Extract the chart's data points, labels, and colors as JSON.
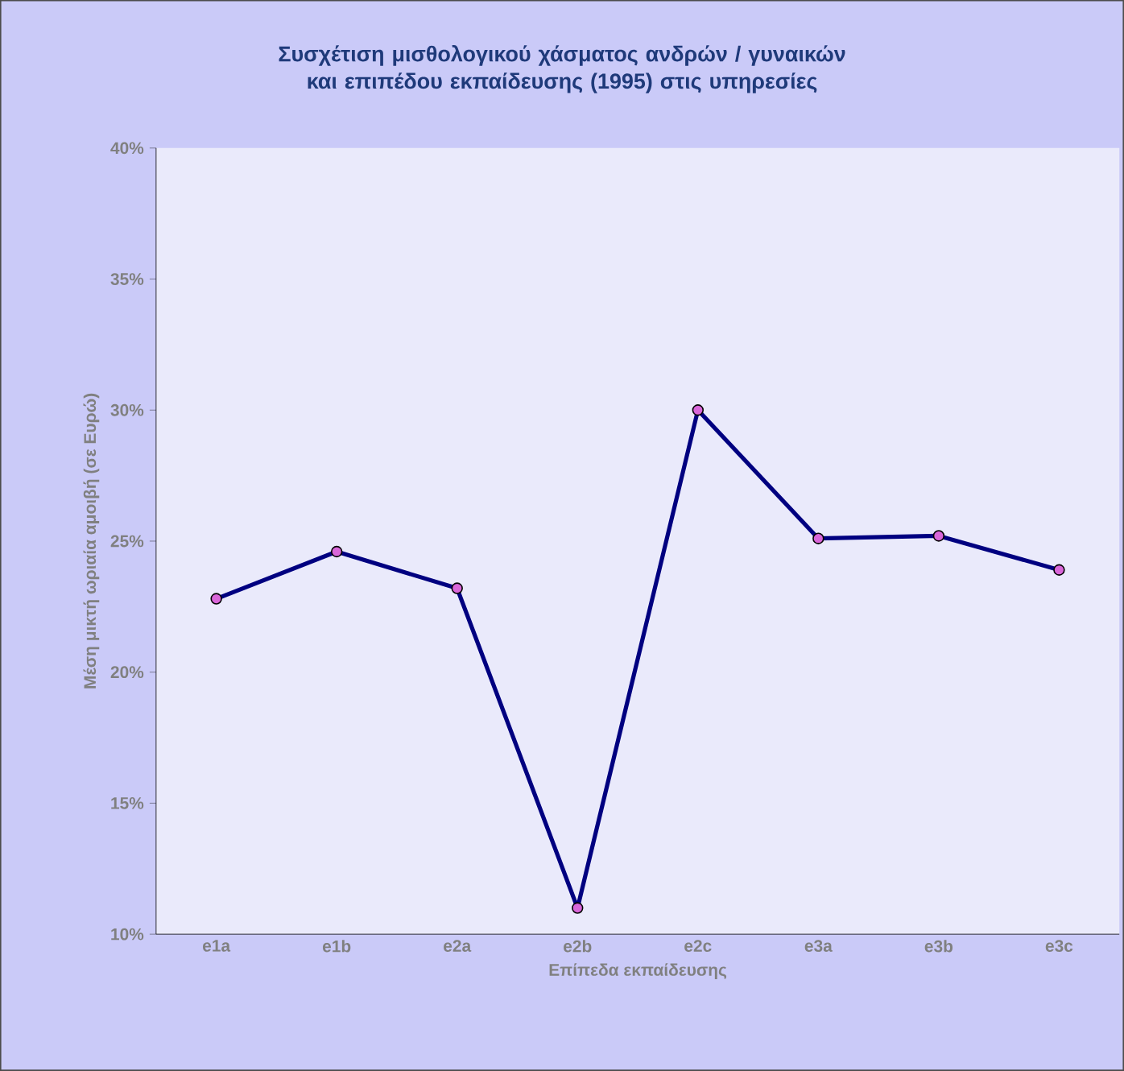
{
  "chart_data": {
    "type": "line",
    "title": "Συσχέτιση μισθολογικού χάσματος ανδρών / γυναικών και επιπέδου εκπαίδευσης (1995) στις υπηρεσίες",
    "xlabel": "Επίπεδα εκπαίδευσης",
    "ylabel": "Μέση μικτή ωριαία αμοιβή (σε Ευρώ)",
    "categories": [
      "e1a",
      "e1b",
      "e2a",
      "e2b",
      "e2c",
      "e3a",
      "e3b",
      "e3c"
    ],
    "series": [
      {
        "color": "#000080",
        "values": [
          22.8,
          24.6,
          23.2,
          11.0,
          30.0,
          25.1,
          25.2,
          23.9
        ]
      }
    ],
    "ylim": [
      10,
      40
    ],
    "yticks": [
      {
        "value": 10,
        "label": "10%"
      },
      {
        "value": 15,
        "label": "15%"
      },
      {
        "value": 20,
        "label": "20%"
      },
      {
        "value": 25,
        "label": "25%"
      },
      {
        "value": 30,
        "label": "30%"
      },
      {
        "value": 35,
        "label": "35%"
      },
      {
        "value": 40,
        "label": "40%"
      }
    ],
    "marker": "circle",
    "line_style": "solid"
  }
}
